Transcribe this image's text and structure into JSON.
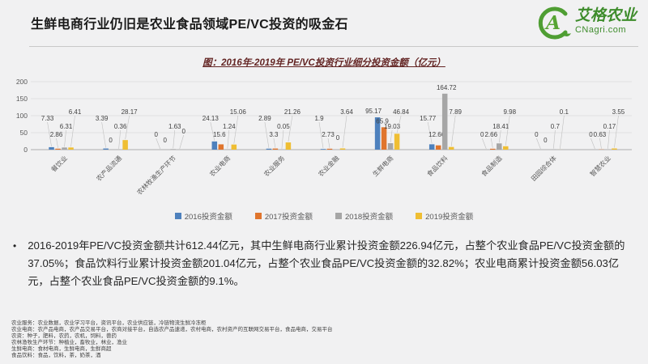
{
  "header": {
    "title": "生鲜电商行业仍旧是农业食品领域PE/VC投资的吸金石",
    "brand_name": "艾格农业",
    "brand_domain": "CNagri.com",
    "brand_color": "#3E8C2C"
  },
  "chart": {
    "title": "图：2016年-2019年 PE/VC投资行业细分投资金额（亿元）"
  },
  "chart_data": {
    "type": "bar",
    "title": "图：2016年-2019年 PE/VC投资行业细分投资金额（亿元）",
    "categories": [
      "餐饮业",
      "农产品流通",
      "农林牧渔生产环节",
      "农业电商",
      "农业服务",
      "农业金融",
      "生鲜电商",
      "食品饮料",
      "食品制造",
      "田园综合体",
      "智慧农业"
    ],
    "series": [
      {
        "name": "2016投资金额",
        "color": "#4E81BD",
        "values": [
          7.33,
          3.39,
          0,
          24.13,
          2.89,
          1.9,
          95.17,
          15.77,
          0,
          0,
          0
        ]
      },
      {
        "name": "2017投资金额",
        "color": "#E0752D",
        "values": [
          2.86,
          0,
          0,
          15.6,
          3.3,
          2.73,
          65.9,
          12.66,
          2.66,
          0,
          0.63
        ]
      },
      {
        "name": "2018投资金额",
        "color": "#A6A6A6",
        "values": [
          6.31,
          0.36,
          1.63,
          1.24,
          0.05,
          0,
          19.03,
          164.72,
          18.41,
          0.7,
          0.17
        ]
      },
      {
        "name": "2019投资金额",
        "color": "#EFBE33",
        "values": [
          6.41,
          28.17,
          0,
          15.06,
          21.26,
          3.64,
          46.84,
          7.89,
          9.98,
          0.1,
          3.55
        ]
      }
    ],
    "xlabel": "",
    "ylabel": "",
    "ylim": [
      0,
      200
    ],
    "yticks": [
      0,
      50,
      100,
      150,
      200
    ],
    "grid": true,
    "legend_position": "bottom"
  },
  "summary": {
    "bullet": "•",
    "text": "2016-2019年PE/VC投资金额共计612.44亿元，其中生鲜电商行业累计投资金额226.94亿元，占整个农业食品PE/VC投资金额的37.05%；食品饮料行业累计投资金额201.04亿元，占整个农业食品PE/VC投资金额的32.82%；农业电商累计投资金额56.03亿元，占整个农业食品PE/VC投资金额的9.1%。"
  },
  "footer": {
    "lines": [
      "农业服务：农业数据，农业学习平台，资讯平台，农业供应链，冷链物流生鲜冷冻柜",
      "农业电商：农产品电商，农产品交易平台，农商对接平台，自选农产品速递，农村电商，农村资产的互联网交易平台，食品电商，交易平台",
      "农资：种子，肥料，农药，农机，饲料，兽药",
      "农林渔牧生产环节：种植业，畜牧业，林业，渔业",
      "生鲜电商：食材电商，生鲜电商，生鲜商超",
      "食品饮料：食品，饮料，茶，奶茶，酒"
    ]
  }
}
